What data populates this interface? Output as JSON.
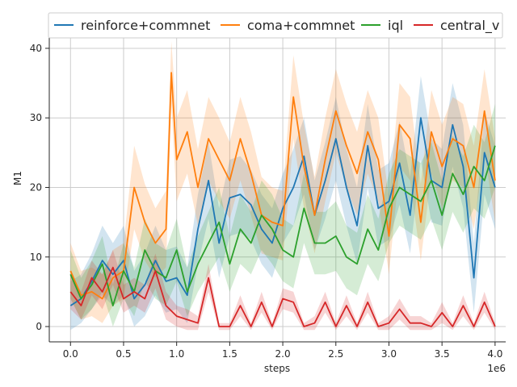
{
  "chart_data": {
    "type": "line",
    "title": "",
    "xlabel": "steps",
    "ylabel": "M1",
    "x_offset_label": "1e6",
    "xlim": [
      -0.2,
      4.1
    ],
    "ylim": [
      -2.2,
      41.5
    ],
    "x_ticks": [
      0.0,
      0.5,
      1.0,
      1.5,
      2.0,
      2.5,
      3.0,
      3.5,
      4.0
    ],
    "x_tick_labels": [
      "0.0",
      "0.5",
      "1.0",
      "1.5",
      "2.0",
      "2.5",
      "3.0",
      "3.5",
      "4.0"
    ],
    "y_ticks": [
      0,
      10,
      20,
      30,
      40
    ],
    "y_tick_labels": [
      "0",
      "10",
      "20",
      "30",
      "40"
    ],
    "grid": true,
    "legend_position": "top",
    "series": [
      {
        "name": "reinforce+commnet",
        "color": "#1f77b4",
        "x": [
          0.0,
          0.1,
          0.2,
          0.3,
          0.4,
          0.5,
          0.6,
          0.7,
          0.8,
          0.9,
          1.0,
          1.1,
          1.2,
          1.3,
          1.4,
          1.5,
          1.6,
          1.7,
          1.8,
          1.9,
          2.0,
          2.1,
          2.2,
          2.3,
          2.4,
          2.5,
          2.6,
          2.7,
          2.8,
          2.9,
          3.0,
          3.1,
          3.2,
          3.3,
          3.4,
          3.5,
          3.6,
          3.7,
          3.8,
          3.9,
          4.0
        ],
        "values": [
          3.0,
          4.0,
          6.5,
          9.5,
          7.5,
          9.5,
          4.0,
          6.0,
          9.5,
          6.5,
          7.0,
          4.5,
          14.0,
          21.0,
          12.0,
          18.5,
          19.0,
          17.5,
          14.0,
          12.0,
          17.0,
          20.0,
          24.5,
          16.0,
          21.0,
          27.0,
          20.0,
          14.5,
          26.0,
          17.0,
          18.0,
          23.5,
          16.0,
          30.0,
          21.0,
          20.0,
          29.0,
          23.0,
          7.0,
          25.0,
          20.0
        ],
        "band": [
          3.5,
          3.5,
          4.0,
          5.0,
          4.5,
          5.0,
          4.0,
          4.5,
          5.0,
          4.5,
          4.5,
          4.0,
          5.0,
          5.5,
          5.0,
          5.5,
          5.5,
          5.0,
          5.0,
          5.0,
          5.0,
          5.5,
          5.5,
          5.0,
          5.5,
          6.0,
          5.5,
          5.5,
          6.0,
          5.5,
          5.5,
          6.0,
          5.5,
          6.0,
          6.0,
          5.5,
          6.0,
          6.0,
          5.0,
          6.0,
          6.0
        ]
      },
      {
        "name": "coma+commnet",
        "color": "#ff7f0e",
        "x": [
          0.0,
          0.1,
          0.2,
          0.3,
          0.4,
          0.5,
          0.6,
          0.7,
          0.8,
          0.9,
          0.95,
          1.0,
          1.1,
          1.2,
          1.3,
          1.4,
          1.5,
          1.6,
          1.7,
          1.8,
          1.9,
          2.0,
          2.1,
          2.2,
          2.3,
          2.4,
          2.5,
          2.6,
          2.7,
          2.8,
          2.9,
          3.0,
          3.1,
          3.2,
          3.3,
          3.4,
          3.5,
          3.6,
          3.7,
          3.8,
          3.9,
          4.0
        ],
        "values": [
          8.0,
          4.5,
          5.0,
          4.0,
          7.0,
          8.0,
          20.0,
          15.0,
          12.0,
          14.0,
          36.5,
          24.0,
          28.0,
          20.0,
          27.0,
          24.0,
          21.0,
          27.0,
          22.0,
          16.0,
          15.0,
          14.5,
          33.0,
          23.0,
          16.0,
          24.0,
          31.0,
          26.0,
          22.0,
          28.0,
          24.0,
          13.0,
          29.0,
          27.0,
          15.0,
          28.0,
          23.0,
          27.0,
          26.0,
          20.0,
          31.0,
          21.0
        ],
        "band": [
          4.0,
          3.5,
          3.5,
          3.5,
          4.0,
          4.0,
          6.0,
          5.5,
          5.0,
          5.5,
          4.5,
          6.0,
          6.0,
          5.5,
          6.0,
          6.0,
          5.5,
          6.0,
          6.0,
          5.5,
          5.0,
          5.0,
          6.0,
          6.0,
          5.5,
          6.0,
          6.0,
          6.0,
          6.0,
          6.0,
          6.0,
          5.5,
          6.0,
          6.0,
          5.5,
          6.0,
          6.0,
          6.0,
          6.0,
          6.0,
          6.0,
          6.0
        ]
      },
      {
        "name": "iql",
        "color": "#2ca02c",
        "x": [
          0.0,
          0.1,
          0.2,
          0.3,
          0.4,
          0.5,
          0.6,
          0.7,
          0.8,
          0.9,
          1.0,
          1.1,
          1.2,
          1.3,
          1.4,
          1.5,
          1.6,
          1.7,
          1.8,
          1.9,
          2.0,
          2.1,
          2.2,
          2.3,
          2.4,
          2.5,
          2.6,
          2.7,
          2.8,
          2.9,
          3.0,
          3.1,
          3.2,
          3.3,
          3.4,
          3.5,
          3.6,
          3.7,
          3.8,
          3.9,
          4.0
        ],
        "values": [
          7.5,
          4.0,
          6.0,
          9.0,
          3.0,
          8.0,
          5.0,
          11.0,
          8.0,
          7.0,
          11.0,
          5.0,
          9.0,
          12.0,
          15.0,
          9.0,
          14.0,
          12.0,
          16.0,
          14.0,
          11.0,
          10.0,
          17.0,
          12.0,
          12.0,
          13.0,
          10.0,
          9.0,
          14.0,
          11.0,
          17.0,
          20.0,
          19.0,
          18.0,
          21.0,
          16.0,
          22.0,
          19.0,
          23.0,
          21.0,
          26.0
        ],
        "band": [
          3.5,
          3.0,
          3.5,
          4.0,
          3.0,
          4.0,
          3.5,
          4.5,
          4.0,
          4.0,
          4.5,
          3.5,
          4.0,
          4.5,
          5.0,
          4.0,
          5.0,
          4.5,
          5.0,
          5.0,
          4.5,
          4.5,
          5.0,
          4.5,
          4.5,
          5.0,
          4.5,
          4.5,
          5.0,
          4.5,
          5.0,
          5.5,
          5.5,
          5.5,
          5.5,
          5.0,
          5.5,
          5.5,
          6.0,
          5.5,
          6.0
        ]
      },
      {
        "name": "central_v",
        "color": "#d62728",
        "x": [
          0.0,
          0.1,
          0.2,
          0.3,
          0.4,
          0.5,
          0.6,
          0.7,
          0.8,
          0.9,
          1.0,
          1.1,
          1.2,
          1.3,
          1.4,
          1.5,
          1.6,
          1.7,
          1.8,
          1.9,
          2.0,
          2.1,
          2.2,
          2.3,
          2.4,
          2.5,
          2.6,
          2.7,
          2.8,
          2.9,
          3.0,
          3.1,
          3.2,
          3.3,
          3.4,
          3.5,
          3.6,
          3.7,
          3.8,
          3.9,
          4.0
        ],
        "values": [
          5.0,
          3.0,
          7.0,
          5.0,
          8.5,
          4.0,
          5.0,
          4.0,
          8.0,
          3.0,
          1.5,
          1.0,
          0.5,
          7.0,
          0.0,
          0.0,
          3.0,
          0.0,
          3.5,
          0.0,
          4.0,
          3.5,
          0.0,
          0.5,
          3.5,
          0.0,
          3.0,
          0.0,
          3.5,
          0.0,
          0.5,
          2.5,
          0.5,
          0.5,
          0.0,
          2.0,
          0.0,
          3.0,
          0.0,
          3.5,
          0.0
        ],
        "band": [
          2.5,
          2.0,
          2.5,
          2.5,
          2.5,
          2.0,
          2.0,
          2.0,
          2.5,
          2.0,
          1.5,
          1.5,
          1.0,
          2.0,
          0.5,
          0.5,
          1.5,
          0.5,
          1.5,
          0.5,
          1.5,
          1.5,
          0.5,
          1.0,
          1.5,
          0.5,
          1.5,
          0.5,
          1.5,
          0.5,
          1.0,
          1.5,
          1.0,
          1.0,
          0.5,
          1.5,
          0.5,
          1.5,
          0.5,
          1.5,
          0.5
        ]
      }
    ]
  }
}
